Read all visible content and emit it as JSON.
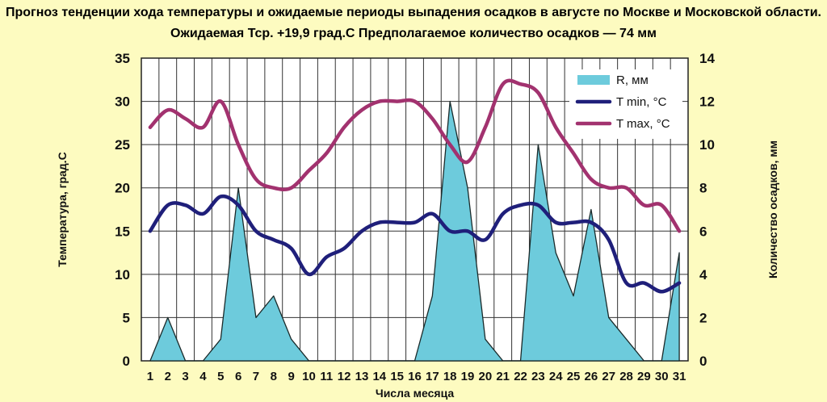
{
  "title_line1": "Прогноз тенденции хода температуры и ожидаемые периоды выпадения осадков в августе по Москве и Московской области.",
  "title_line2": "Ожидаемая Тср. +19,9 град.С Предполагаемое количество осадков — 74 мм",
  "chart_data": {
    "type": "line",
    "title": "Прогноз тенденции хода температуры и ожидаемые периоды выпадения осадков в августе по Москве и Московской области.",
    "subtitle": "Ожидаемая Тср. +19,9 град.С Предполагаемое количество осадков — 74 мм",
    "xlabel": "Числа месяца",
    "ylabel": "Температура, град.С",
    "y2label": "Количество осадков, мм",
    "x": [
      1,
      2,
      3,
      4,
      5,
      6,
      7,
      8,
      9,
      10,
      11,
      12,
      13,
      14,
      15,
      16,
      17,
      18,
      19,
      20,
      21,
      22,
      23,
      24,
      25,
      26,
      27,
      28,
      29,
      30,
      31
    ],
    "xlim": [
      1,
      31
    ],
    "ylim": [
      0,
      35
    ],
    "y2lim": [
      0,
      14
    ],
    "yticks": [
      0,
      5,
      10,
      15,
      20,
      25,
      30,
      35
    ],
    "y2ticks": [
      0,
      2,
      4,
      6,
      8,
      10,
      12,
      14
    ],
    "grid": true,
    "legend_position": "top-right",
    "series": [
      {
        "name": "R, мм",
        "type": "area",
        "axis": "right",
        "color": "#6dcbdc",
        "values": [
          0,
          2,
          0,
          0,
          1,
          8,
          2,
          3,
          1,
          0,
          0,
          0,
          0,
          0,
          0,
          0,
          3,
          12,
          8,
          1,
          0,
          0,
          10,
          5,
          3,
          7,
          2,
          1,
          0,
          0,
          5
        ]
      },
      {
        "name": "T min, °C",
        "type": "line",
        "axis": "left",
        "color": "#1f1f7a",
        "values": [
          15,
          18,
          18,
          17,
          19,
          18,
          15,
          14,
          13,
          10,
          12,
          13,
          15,
          16,
          16,
          16,
          17,
          15,
          15,
          14,
          17,
          18,
          18,
          16,
          16,
          16,
          14,
          9,
          9,
          8,
          9
        ]
      },
      {
        "name": "T max, °C",
        "type": "line",
        "axis": "left",
        "color": "#a2326f",
        "values": [
          27,
          29,
          28,
          27,
          30,
          25,
          21,
          20,
          20,
          22,
          24,
          27,
          29,
          30,
          30,
          30,
          28,
          25,
          23,
          27,
          32,
          32,
          31,
          27,
          24,
          21,
          20,
          20,
          18,
          18,
          15
        ]
      }
    ]
  }
}
